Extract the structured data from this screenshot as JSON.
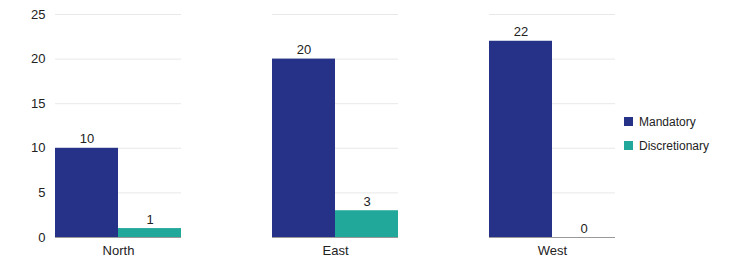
{
  "chart_data": {
    "type": "bar",
    "categories": [
      "North",
      "East",
      "West"
    ],
    "series": [
      {
        "name": "Mandatory",
        "color": "#253287",
        "values": [
          10,
          20,
          22
        ]
      },
      {
        "name": "Discretionary",
        "color": "#21a89a",
        "values": [
          1,
          3,
          0
        ]
      }
    ],
    "ylim": [
      0,
      25
    ],
    "yticks": [
      0,
      5,
      10,
      15,
      20,
      25
    ],
    "grid": true,
    "legend": "right",
    "data_labels": true
  }
}
